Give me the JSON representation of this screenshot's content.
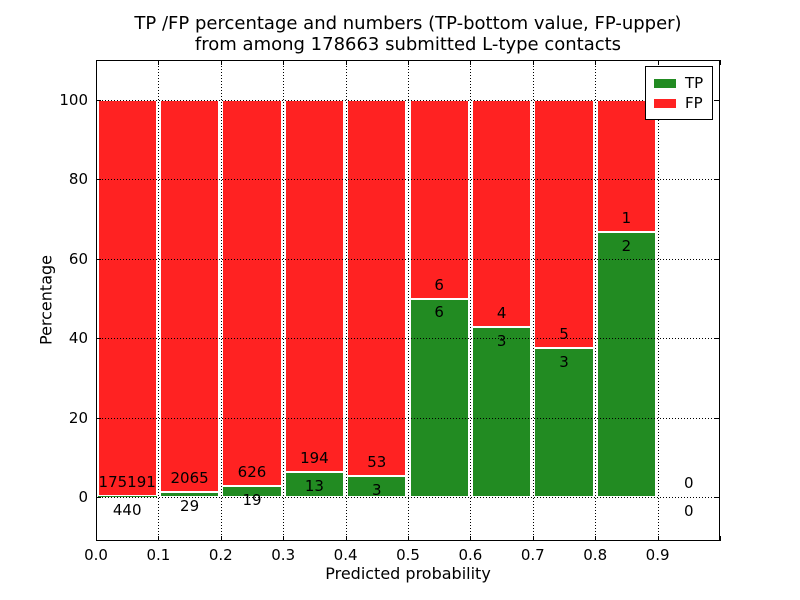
{
  "chart_data": {
    "type": "bar",
    "stacked": true,
    "normalized": "percent_of_bin_total",
    "title_line1": "TP /FP percentage and numbers (TP-bottom value, FP-upper)",
    "title_line2": "from among 178663 submitted L-type contacts",
    "xlabel": "Predicted probability",
    "ylabel": "Percentage",
    "total_contacts": 178663,
    "bins": [
      {
        "range": "0.0-0.1",
        "tp": 440,
        "fp": 175191
      },
      {
        "range": "0.1-0.2",
        "tp": 29,
        "fp": 2065
      },
      {
        "range": "0.2-0.3",
        "tp": 19,
        "fp": 626
      },
      {
        "range": "0.3-0.4",
        "tp": 13,
        "fp": 194
      },
      {
        "range": "0.4-0.5",
        "tp": 3,
        "fp": 53
      },
      {
        "range": "0.5-0.6",
        "tp": 6,
        "fp": 6
      },
      {
        "range": "0.6-0.7",
        "tp": 3,
        "fp": 4
      },
      {
        "range": "0.7-0.8",
        "tp": 3,
        "fp": 5
      },
      {
        "range": "0.8-0.9",
        "tp": 2,
        "fp": 1
      },
      {
        "range": "0.9-1.0",
        "tp": 0,
        "fp": 0
      }
    ],
    "x_tick_labels": [
      "0.0",
      "0.1",
      "0.2",
      "0.3",
      "0.4",
      "0.5",
      "0.6",
      "0.7",
      "0.8",
      "0.9"
    ],
    "y_ticks": [
      0,
      20,
      40,
      60,
      80,
      100
    ],
    "xlim": [
      0.0,
      1.0
    ],
    "ylim": [
      -11,
      110
    ],
    "grid": {
      "style": "dotted",
      "color": "#000000",
      "above_bars": true
    },
    "colors": {
      "tp": "#228b22",
      "fp": "#ff2222",
      "bar_edge": "#ffffff"
    },
    "legend": {
      "position": "upper-right",
      "entries": [
        {
          "label": "TP",
          "color_key": "tp"
        },
        {
          "label": "FP",
          "color_key": "fp"
        }
      ]
    }
  }
}
